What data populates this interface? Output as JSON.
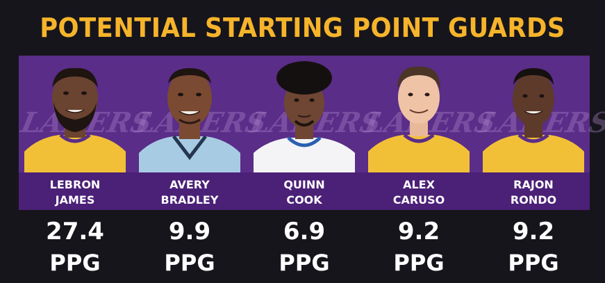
{
  "title": "POTENTIAL STARTING POINT GUARDS",
  "watermark": "LAKERS",
  "colors": {
    "title": "#f6b42b",
    "panel": "#5a2d88",
    "name_bar": "#4b2077",
    "background": "#17151c"
  },
  "players": [
    {
      "first": "LEBRON",
      "last": "JAMES",
      "ppg": "27.4",
      "unit": "PPG",
      "jersey": "lakers-gold"
    },
    {
      "first": "AVERY",
      "last": "BRADLEY",
      "ppg": "9.9",
      "unit": "PPG",
      "jersey": "grizzlies-light-blue"
    },
    {
      "first": "QUINN",
      "last": "COOK",
      "ppg": "6.9",
      "unit": "PPG",
      "jersey": "warriors-white"
    },
    {
      "first": "ALEX",
      "last": "CARUSO",
      "ppg": "9.2",
      "unit": "PPG",
      "jersey": "lakers-gold"
    },
    {
      "first": "RAJON",
      "last": "RONDO",
      "ppg": "9.2",
      "unit": "PPG",
      "jersey": "lakers-gold"
    }
  ]
}
